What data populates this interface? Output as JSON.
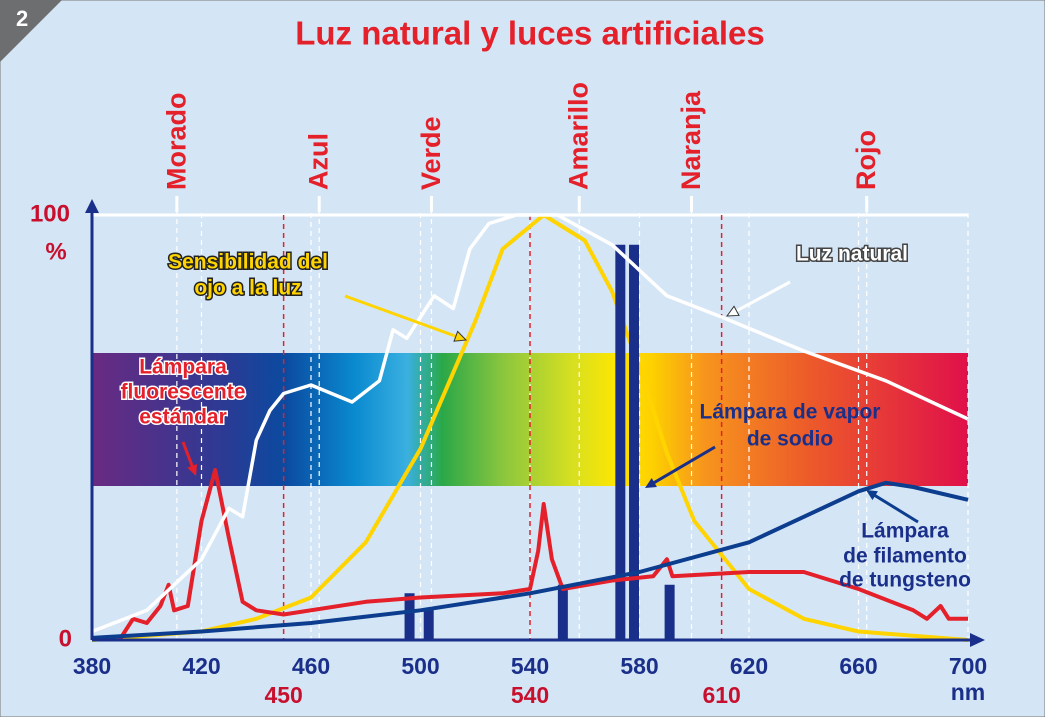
{
  "badge": "2",
  "chart_data": {
    "type": "line",
    "title": "Luz natural y luces artificiales",
    "xlim": [
      380,
      700
    ],
    "xticks": [
      380,
      420,
      460,
      500,
      540,
      580,
      620,
      660,
      700
    ],
    "xlabel": "nm",
    "ylim": [
      0,
      100
    ],
    "yticks": [
      0,
      100
    ],
    "ylabel": "%",
    "band_labels": [
      {
        "label": "Morado",
        "x": 411
      },
      {
        "label": "Azul",
        "x": 463
      },
      {
        "label": "Verde",
        "x": 504
      },
      {
        "label": "Amarillo",
        "x": 558
      },
      {
        "label": "Naranja",
        "x": 599
      },
      {
        "label": "Rojo",
        "x": 663
      }
    ],
    "marked_x": [
      450,
      540,
      610
    ],
    "series": [
      {
        "label_lines": [
          "Luz natural"
        ],
        "color": "#ffffff",
        "type": "line",
        "x": [
          380,
          400,
          420,
          430,
          435,
          440,
          445,
          450,
          460,
          475,
          485,
          490,
          495,
          505,
          512,
          518,
          525,
          535,
          550,
          570,
          590,
          610,
          640,
          670,
          700
        ],
        "values": [
          2,
          7,
          19,
          31,
          29,
          47,
          54,
          58,
          60,
          56,
          61,
          73,
          71,
          81,
          78,
          92,
          98,
          100,
          100,
          93,
          81,
          76,
          68,
          61,
          52
        ]
      },
      {
        "label_lines": [
          "Sensibilidad del",
          "ojo a la luz"
        ],
        "color": "#ffd400",
        "type": "line",
        "x": [
          380,
          420,
          440,
          460,
          480,
          500,
          520,
          530,
          545,
          560,
          570,
          580,
          590,
          600,
          620,
          640,
          660,
          700
        ],
        "values": [
          0,
          2,
          5,
          10,
          23,
          45,
          75,
          92,
          100,
          94,
          82,
          64,
          44,
          28,
          12,
          5,
          2,
          0
        ]
      },
      {
        "label_lines": [
          "Lámpara",
          "fluorescente",
          "estándar"
        ],
        "color": "#e4202a",
        "type": "line",
        "x": [
          390,
          395,
          400,
          405,
          408,
          410,
          415,
          420,
          425,
          430,
          435,
          440,
          450,
          480,
          500,
          530,
          540,
          543,
          545,
          548,
          552,
          570,
          585,
          590,
          592,
          620,
          640,
          660,
          680,
          685,
          690,
          693,
          700
        ],
        "values": [
          0,
          5,
          4,
          8,
          13,
          7,
          8,
          28,
          40,
          24,
          9,
          7,
          6,
          9,
          10,
          11,
          12,
          21,
          32,
          19,
          12,
          14,
          15,
          19,
          15,
          16,
          16,
          12,
          7,
          5,
          8,
          5,
          5
        ]
      },
      {
        "label_lines": [
          "Lámpara de vapor",
          "de sodio"
        ],
        "color": "#1a2f8a",
        "type": "bars",
        "x": [
          496,
          503,
          552,
          573,
          578,
          591
        ],
        "values": [
          11,
          7.5,
          13,
          93,
          93,
          13
        ]
      },
      {
        "label_lines": [
          "Lámpara",
          "de filamento",
          "de tungsteno"
        ],
        "color": "#0d3d8e",
        "type": "line",
        "x": [
          380,
          420,
          460,
          500,
          540,
          580,
          620,
          640,
          660,
          670,
          680,
          700
        ],
        "values": [
          0.5,
          2,
          4,
          7,
          11,
          16,
          23,
          29,
          35,
          37,
          36,
          33
        ]
      }
    ]
  }
}
